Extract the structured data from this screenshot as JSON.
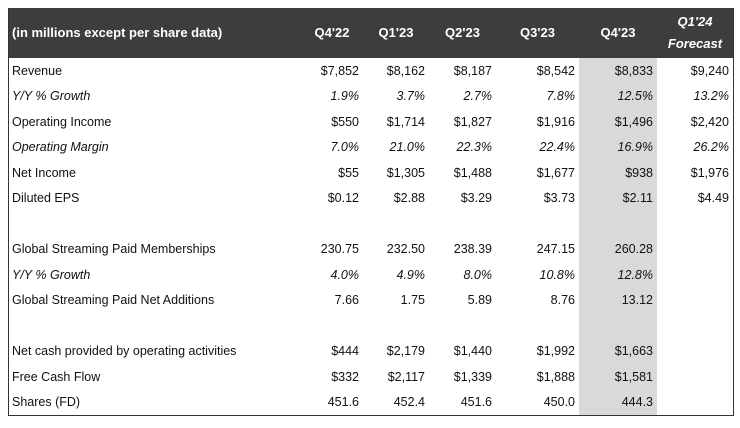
{
  "header": {
    "label": "(in millions except per share data)",
    "columns": [
      "Q4'22",
      "Q1'23",
      "Q2'23",
      "Q3'23",
      "Q4'23"
    ],
    "forecast_line1": "Q1'24",
    "forecast_line2": "Forecast"
  },
  "highlight_color": "#d9d9d9",
  "header_color": "#3d3d3d",
  "rows": [
    {
      "label": "Revenue",
      "italic": false,
      "values": [
        "$7,852",
        "$8,162",
        "$8,187",
        "$8,542",
        "$8,833",
        "$9,240"
      ]
    },
    {
      "label": "Y/Y % Growth",
      "italic": true,
      "values": [
        "1.9%",
        "3.7%",
        "2.7%",
        "7.8%",
        "12.5%",
        "13.2%"
      ]
    },
    {
      "label": "Operating Income",
      "italic": false,
      "values": [
        "$550",
        "$1,714",
        "$1,827",
        "$1,916",
        "$1,496",
        "$2,420"
      ]
    },
    {
      "label": "Operating Margin",
      "italic": true,
      "values": [
        "7.0%",
        "21.0%",
        "22.3%",
        "22.4%",
        "16.9%",
        "26.2%"
      ]
    },
    {
      "label": "Net Income",
      "italic": false,
      "values": [
        "$55",
        "$1,305",
        "$1,488",
        "$1,677",
        "$938",
        "$1,976"
      ]
    },
    {
      "label": "Diluted EPS",
      "italic": false,
      "values": [
        "$0.12",
        "$2.88",
        "$3.29",
        "$3.73",
        "$2.11",
        "$4.49"
      ]
    },
    {
      "label": "",
      "italic": false,
      "values": [
        "",
        "",
        "",
        "",
        "",
        ""
      ]
    },
    {
      "label": "Global Streaming Paid Memberships",
      "italic": false,
      "values": [
        "230.75",
        "232.50",
        "238.39",
        "247.15",
        "260.28",
        ""
      ]
    },
    {
      "label": "Y/Y % Growth",
      "italic": true,
      "values": [
        "4.0%",
        "4.9%",
        "8.0%",
        "10.8%",
        "12.8%",
        ""
      ]
    },
    {
      "label": "Global Streaming Paid Net Additions",
      "italic": false,
      "values": [
        "7.66",
        "1.75",
        "5.89",
        "8.76",
        "13.12",
        ""
      ]
    },
    {
      "label": "",
      "italic": false,
      "values": [
        "",
        "",
        "",
        "",
        "",
        ""
      ]
    },
    {
      "label": "Net cash provided by operating activities",
      "italic": false,
      "values": [
        "$444",
        "$2,179",
        "$1,440",
        "$1,992",
        "$1,663",
        ""
      ]
    },
    {
      "label": "Free Cash Flow",
      "italic": false,
      "values": [
        "$332",
        "$2,117",
        "$1,339",
        "$1,888",
        "$1,581",
        ""
      ]
    },
    {
      "label": "Shares (FD)",
      "italic": false,
      "values": [
        "451.6",
        "452.4",
        "451.6",
        "450.0",
        "444.3",
        ""
      ]
    }
  ]
}
